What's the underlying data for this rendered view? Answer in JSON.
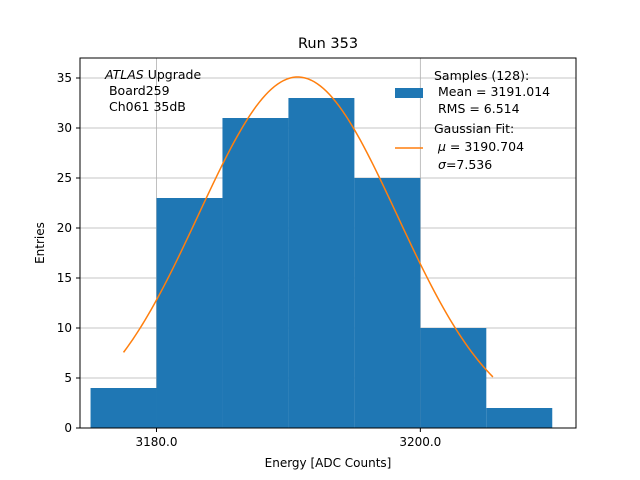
{
  "chart_data": {
    "type": "bar",
    "title": "Run 353",
    "xlabel": "Energy [ADC Counts]",
    "ylabel": "Entries",
    "xlim": [
      3174.2,
      3211.8
    ],
    "ylim": [
      0,
      37
    ],
    "xticks": [
      3180.0,
      3200.0
    ],
    "xtick_labels": [
      "3180.0",
      "3200.0"
    ],
    "yticks": [
      0,
      5,
      10,
      15,
      20,
      25,
      30,
      35
    ],
    "grid": true,
    "histogram": {
      "name": "Samples",
      "bin_edges": [
        3175,
        3180,
        3185,
        3190,
        3195,
        3200,
        3205,
        3210
      ],
      "counts": [
        4,
        23,
        31,
        33,
        25,
        10,
        2
      ],
      "color": "#1f77b4"
    },
    "fit": {
      "name": "Gaussian Fit",
      "mu": 3190.704,
      "sigma": 7.536,
      "amplitude": 35.1,
      "x_range": [
        3177.5,
        3205.5
      ],
      "color": "#ff7f0e"
    },
    "annotation": {
      "italic": "ATLAS",
      "suffix": " Upgrade",
      "line2": " Board259",
      "line3": " Ch061 35dB"
    },
    "legend": {
      "position": "top-right",
      "samples": [
        "Samples (128):",
        " Mean = 3191.014",
        " RMS = 6.514"
      ],
      "fit_title": "Gaussian Fit:",
      "fit_mu": " = 3190.704",
      "fit_sigma": "=7.536",
      "mu_symbol": "μ",
      "sigma_symbol": "σ"
    }
  }
}
